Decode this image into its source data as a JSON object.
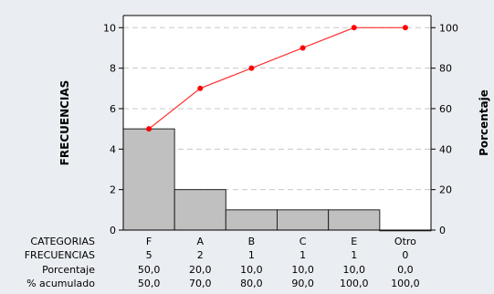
{
  "chart_data": {
    "type": "bar",
    "subtype": "pareto",
    "categories": [
      "F",
      "A",
      "B",
      "C",
      "E",
      "Otro"
    ],
    "series": [
      {
        "type": "bar",
        "axis": "left",
        "values": [
          5,
          2,
          1,
          1,
          1,
          0
        ]
      },
      {
        "type": "line",
        "axis": "right",
        "values": [
          50,
          70,
          80,
          90,
          100,
          100
        ]
      }
    ],
    "title": "",
    "ylabel": "FRECUENCIAS",
    "y2label": "Porcentaje",
    "ylim": [
      0,
      10.6
    ],
    "y2lim": [
      0,
      106
    ],
    "yticks": [
      0,
      2,
      4,
      6,
      8,
      10
    ],
    "y2ticks": [
      0,
      20,
      40,
      60,
      80,
      100
    ],
    "grid": "horizontal-dashed",
    "colors": {
      "background": "#eaedf1",
      "plot": "#ffffff",
      "bar_fill": "#c0c0c0",
      "bar_stroke": "#222222",
      "line": "#ff3030",
      "marker": "#ff0000",
      "grid": "#c8c8c8"
    },
    "table": {
      "rows": [
        {
          "label": "CATEGORIAS",
          "cells": [
            "F",
            "A",
            "B",
            "C",
            "E",
            "Otro"
          ]
        },
        {
          "label": "FRECUENCIAS",
          "cells": [
            "5",
            "2",
            "1",
            "1",
            "1",
            "0"
          ]
        },
        {
          "label": "Porcentaje",
          "cells": [
            "50,0",
            "20,0",
            "10,0",
            "10,0",
            "10,0",
            "0,0"
          ]
        },
        {
          "label": "% acumulado",
          "cells": [
            "50,0",
            "70,0",
            "80,0",
            "90,0",
            "100,0",
            "100,0"
          ]
        }
      ]
    }
  }
}
